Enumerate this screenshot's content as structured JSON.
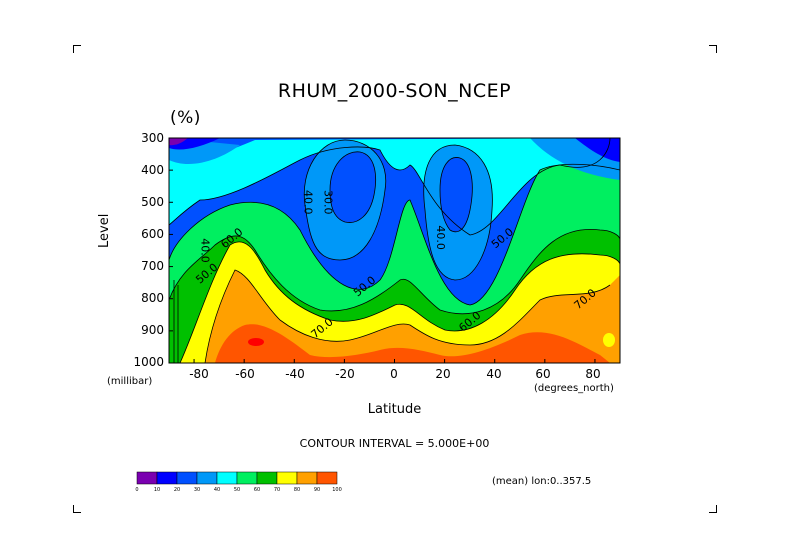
{
  "chart_data": {
    "type": "contour",
    "title": "RHUM_2000-SON_NCEP",
    "units": "(%)",
    "xlabel": "Latitude",
    "ylabel": "Level",
    "x_units": "(degrees_north)",
    "y_units": "(millibar)",
    "x_ticks": [
      "-80",
      "-60",
      "-40",
      "-20",
      "0",
      "20",
      "40",
      "60",
      "80"
    ],
    "y_ticks": [
      "300",
      "400",
      "500",
      "600",
      "700",
      "800",
      "900",
      "1000"
    ],
    "xlim": [
      -90,
      90
    ],
    "ylim": [
      1000,
      300
    ],
    "contour_interval_text": "CONTOUR INTERVAL = 5.000E+00",
    "mean_text": "(mean) lon:0..357.5",
    "contour_labels": [
      {
        "text": "30.0",
        "x": -28,
        "y": 500
      },
      {
        "text": "40.0",
        "x": -36,
        "y": 500
      },
      {
        "text": "40.0",
        "x": 17,
        "y": 610
      },
      {
        "text": "50.0",
        "x": 44,
        "y": 620
      },
      {
        "text": "60.0",
        "x": -64,
        "y": 620
      },
      {
        "text": "40.0",
        "x": -77,
        "y": 650
      },
      {
        "text": "50.0",
        "x": -74,
        "y": 730
      },
      {
        "text": "50.0",
        "x": -11,
        "y": 770
      },
      {
        "text": "70.0",
        "x": 77,
        "y": 810
      },
      {
        "text": "60.0",
        "x": 31,
        "y": 880
      },
      {
        "text": "70.0",
        "x": -28,
        "y": 900
      }
    ],
    "colorbar": {
      "labels": [
        "0",
        "10",
        "20",
        "30",
        "40",
        "50",
        "60",
        "70",
        "80",
        "90",
        "100"
      ],
      "colors": [
        "#7a00b0",
        "#0000ff",
        "#0050ff",
        "#0098f8",
        "#00ffff",
        "#00ef60",
        "#00c000",
        "#ffff00",
        "#ffa000",
        "#ff5500",
        "#ff0000"
      ]
    }
  }
}
